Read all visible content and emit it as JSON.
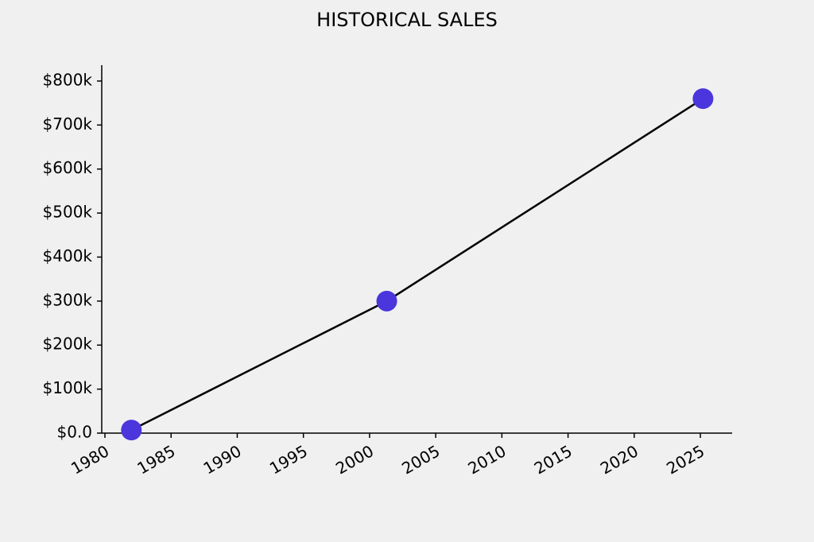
{
  "chart_data": {
    "type": "line",
    "title": "HISTORICAL SALES",
    "x": [
      1982,
      2001.3,
      2025.2
    ],
    "series": [
      {
        "values": [
          7000,
          300000,
          760000
        ],
        "color": "#4a36dc",
        "line_color": "#000000"
      }
    ],
    "xlim": [
      1979.76,
      2027.4
    ],
    "xticks": [
      1980,
      1985,
      1990,
      1995,
      2000,
      2005,
      2010,
      2015,
      2020,
      2025
    ],
    "ylim": [
      0,
      836000
    ],
    "yticks": [
      {
        "value": 0,
        "label": "$0.0"
      },
      {
        "value": 100000,
        "label": "$100k"
      },
      {
        "value": 200000,
        "label": "$200k"
      },
      {
        "value": 300000,
        "label": "$300k"
      },
      {
        "value": 400000,
        "label": "$400k"
      },
      {
        "value": 500000,
        "label": "$500k"
      },
      {
        "value": 600000,
        "label": "$600k"
      },
      {
        "value": 700000,
        "label": "$700k"
      },
      {
        "value": 800000,
        "label": "$800k"
      }
    ],
    "grid": false
  }
}
